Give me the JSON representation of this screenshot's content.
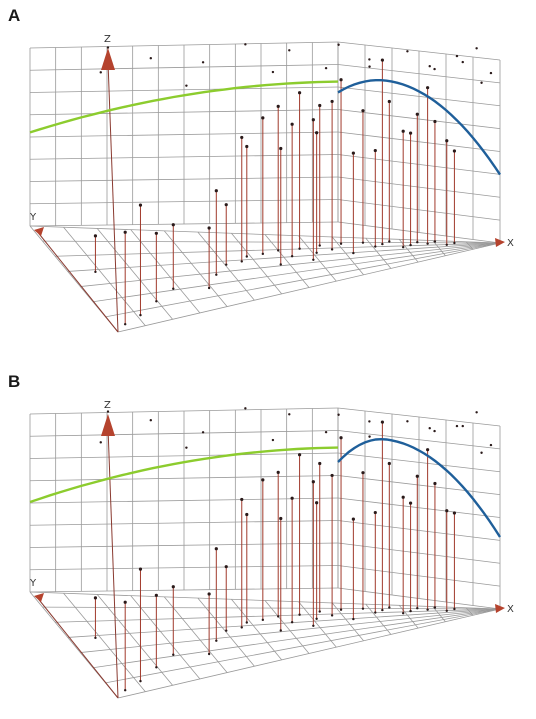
{
  "figure": {
    "colors": {
      "grid": "#9a9a9a",
      "stem": "#a0392b",
      "point": "#2a1a1a",
      "green_curve": "#8ccc2e",
      "blue_curve": "#1f5f9a",
      "axis_arrow": "#b5432e"
    }
  },
  "chart_data": [
    {
      "type": "3d-scatter",
      "panel_label": "A",
      "axis_labels": {
        "x": "X",
        "y": "Y",
        "z": "Z"
      },
      "grid": true,
      "stems": [
        [
          0.03,
          0.05,
          0.46
        ],
        [
          0.08,
          0.1,
          0.55
        ],
        [
          0.14,
          0.2,
          0.34
        ],
        [
          0.06,
          0.55,
          0.18
        ],
        [
          0.2,
          0.3,
          0.32
        ],
        [
          0.28,
          0.25,
          0.3
        ],
        [
          0.32,
          0.4,
          0.42
        ],
        [
          0.36,
          0.52,
          0.3
        ],
        [
          0.4,
          0.55,
          0.62
        ],
        [
          0.42,
          0.62,
          0.55
        ],
        [
          0.46,
          0.65,
          0.68
        ],
        [
          0.5,
          0.7,
          0.72
        ],
        [
          0.52,
          0.58,
          0.66
        ],
        [
          0.55,
          0.72,
          0.78
        ],
        [
          0.58,
          0.62,
          0.6
        ],
        [
          0.6,
          0.78,
          0.7
        ],
        [
          0.62,
          0.68,
          0.74
        ],
        [
          0.65,
          0.82,
          0.82
        ],
        [
          0.66,
          0.56,
          0.5
        ],
        [
          0.7,
          0.85,
          0.66
        ],
        [
          0.72,
          0.72,
          0.48
        ],
        [
          0.74,
          0.8,
          0.92
        ],
        [
          0.76,
          0.9,
          0.7
        ],
        [
          0.78,
          0.66,
          0.58
        ],
        [
          0.8,
          0.74,
          0.56
        ],
        [
          0.82,
          0.88,
          0.64
        ],
        [
          0.84,
          0.8,
          0.78
        ],
        [
          0.86,
          0.94,
          0.6
        ],
        [
          0.88,
          0.7,
          0.52
        ],
        [
          0.9,
          0.84,
          0.46
        ],
        [
          0.48,
          0.45,
          0.58
        ],
        [
          0.56,
          0.48,
          0.7
        ]
      ],
      "floating_points": [
        [
          0.15,
          0.9,
          0.95
        ],
        [
          0.25,
          0.95,
          0.88
        ],
        [
          0.35,
          0.85,
          0.9
        ],
        [
          0.45,
          0.92,
          0.97
        ],
        [
          0.55,
          0.98,
          0.93
        ],
        [
          0.65,
          0.9,
          0.98
        ],
        [
          0.72,
          0.96,
          0.9
        ],
        [
          0.8,
          0.92,
          0.95
        ],
        [
          0.86,
          0.97,
          0.86
        ],
        [
          0.92,
          0.95,
          0.9
        ],
        [
          0.96,
          0.9,
          0.8
        ],
        [
          0.95,
          0.97,
          0.97
        ],
        [
          0.1,
          0.7,
          0.92
        ],
        [
          0.3,
          0.75,
          0.82
        ],
        [
          0.5,
          0.82,
          0.86
        ],
        [
          0.62,
          0.86,
          0.87
        ],
        [
          0.7,
          0.6,
          0.92
        ],
        [
          0.84,
          0.65,
          0.9
        ],
        [
          0.9,
          0.55,
          0.95
        ],
        [
          0.98,
          0.8,
          0.85
        ]
      ],
      "green_curve": {
        "z_at_x0": 0.52,
        "z_at_xmid": 0.78
      },
      "blue_curve": {
        "z_start": 0.72,
        "z_peak": 0.82,
        "z_end": 0.38
      }
    },
    {
      "type": "3d-scatter",
      "panel_label": "B",
      "axis_labels": {
        "x": "X",
        "y": "Y",
        "z": "Z"
      },
      "grid": true,
      "stems": [
        [
          0.03,
          0.05,
          0.44
        ],
        [
          0.08,
          0.1,
          0.56
        ],
        [
          0.14,
          0.2,
          0.36
        ],
        [
          0.06,
          0.55,
          0.2
        ],
        [
          0.2,
          0.3,
          0.34
        ],
        [
          0.28,
          0.25,
          0.3
        ],
        [
          0.32,
          0.4,
          0.46
        ],
        [
          0.36,
          0.52,
          0.32
        ],
        [
          0.4,
          0.55,
          0.64
        ],
        [
          0.42,
          0.62,
          0.54
        ],
        [
          0.46,
          0.65,
          0.7
        ],
        [
          0.5,
          0.7,
          0.72
        ],
        [
          0.52,
          0.58,
          0.62
        ],
        [
          0.55,
          0.72,
          0.8
        ],
        [
          0.58,
          0.62,
          0.58
        ],
        [
          0.6,
          0.78,
          0.74
        ],
        [
          0.62,
          0.68,
          0.7
        ],
        [
          0.65,
          0.82,
          0.86
        ],
        [
          0.66,
          0.56,
          0.5
        ],
        [
          0.7,
          0.85,
          0.68
        ],
        [
          0.72,
          0.72,
          0.5
        ],
        [
          0.74,
          0.8,
          0.94
        ],
        [
          0.76,
          0.9,
          0.72
        ],
        [
          0.78,
          0.66,
          0.58
        ],
        [
          0.8,
          0.74,
          0.54
        ],
        [
          0.82,
          0.88,
          0.66
        ],
        [
          0.84,
          0.8,
          0.8
        ],
        [
          0.86,
          0.94,
          0.62
        ],
        [
          0.88,
          0.7,
          0.5
        ],
        [
          0.9,
          0.84,
          0.48
        ],
        [
          0.48,
          0.45,
          0.56
        ],
        [
          0.56,
          0.48,
          0.72
        ]
      ],
      "floating_points": [
        [
          0.15,
          0.9,
          0.96
        ],
        [
          0.25,
          0.95,
          0.9
        ],
        [
          0.35,
          0.85,
          0.88
        ],
        [
          0.45,
          0.92,
          0.98
        ],
        [
          0.55,
          0.98,
          0.94
        ],
        [
          0.65,
          0.9,
          0.96
        ],
        [
          0.72,
          0.96,
          0.92
        ],
        [
          0.8,
          0.92,
          0.93
        ],
        [
          0.86,
          0.97,
          0.88
        ],
        [
          0.92,
          0.95,
          0.91
        ],
        [
          0.96,
          0.9,
          0.78
        ],
        [
          0.95,
          0.97,
          0.98
        ],
        [
          0.1,
          0.7,
          0.9
        ],
        [
          0.3,
          0.75,
          0.84
        ],
        [
          0.5,
          0.82,
          0.85
        ],
        [
          0.62,
          0.86,
          0.88
        ],
        [
          0.7,
          0.6,
          0.9
        ],
        [
          0.84,
          0.65,
          0.92
        ],
        [
          0.9,
          0.55,
          0.93
        ],
        [
          0.98,
          0.8,
          0.82
        ]
      ],
      "green_curve": {
        "z_at_x0": 0.5,
        "z_at_xmid": 0.78
      },
      "blue_curve": {
        "z_start": 0.7,
        "z_peak": 0.86,
        "z_end": 0.4
      }
    }
  ]
}
